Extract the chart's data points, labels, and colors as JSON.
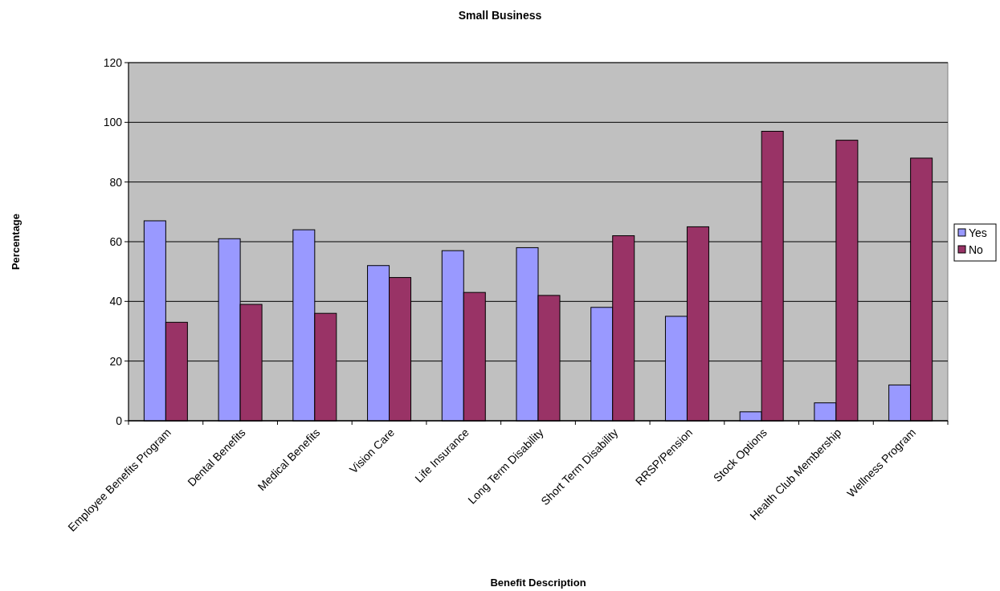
{
  "chart_data": {
    "type": "bar",
    "title": "Small Business",
    "xlabel": "Benefit Description",
    "ylabel": "Percentage",
    "categories": [
      "Employee Benefits Program",
      "Dental Benefits",
      "Medical Benefits",
      "Vision Care",
      "Life Insurance",
      "Long Term Disability",
      "Short Term Disability",
      "RRSP/Pension",
      "Stock Options",
      "Health Club Membership",
      "Wellness Program"
    ],
    "series": [
      {
        "name": "Yes",
        "color": "#9999ff",
        "values": [
          67,
          61,
          64,
          52,
          57,
          58,
          38,
          35,
          3,
          6,
          12
        ]
      },
      {
        "name": "No",
        "color": "#993366",
        "values": [
          33,
          39,
          36,
          48,
          43,
          42,
          62,
          65,
          97,
          94,
          88
        ]
      }
    ],
    "ylim": [
      0,
      120
    ],
    "yticks": [
      0,
      20,
      40,
      60,
      80,
      100,
      120
    ],
    "grid": "y",
    "legend": "right"
  }
}
